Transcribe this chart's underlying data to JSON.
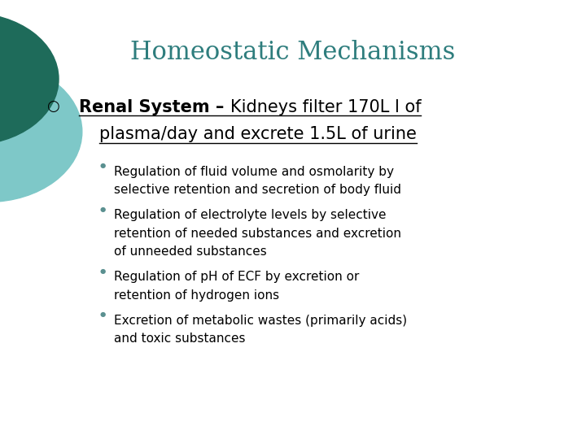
{
  "title": "Homeostatic Mechanisms",
  "title_color": "#2E7D7D",
  "title_fontsize": 22,
  "background_color": "#FFFFFF",
  "bullet1_bold": "Renal System – ",
  "bullet1_rest_line1": "Kidneys filter 170L l of",
  "bullet1_rest_line2": "plasma/day and excrete 1.5L of urine",
  "bullet1_fontsize": 15,
  "bullet1_color": "#000000",
  "sub_bullets": [
    [
      "Regulation of fluid volume and osmolarity by",
      "selective retention and secretion of body fluid"
    ],
    [
      "Regulation of electrolyte levels by selective",
      "retention of needed substances and excretion",
      "of unneeded substances"
    ],
    [
      "Regulation of pH of ECF by excretion or",
      "retention of hydrogen ions"
    ],
    [
      "Excretion of metabolic wastes (primarily acids)",
      "and toxic substances"
    ]
  ],
  "sub_bullet_fontsize": 11,
  "sub_bullet_color": "#000000",
  "circle_dark": "#1E6B5A",
  "circle_light": "#7EC8C8",
  "bullet_marker_color": "#5A9090"
}
